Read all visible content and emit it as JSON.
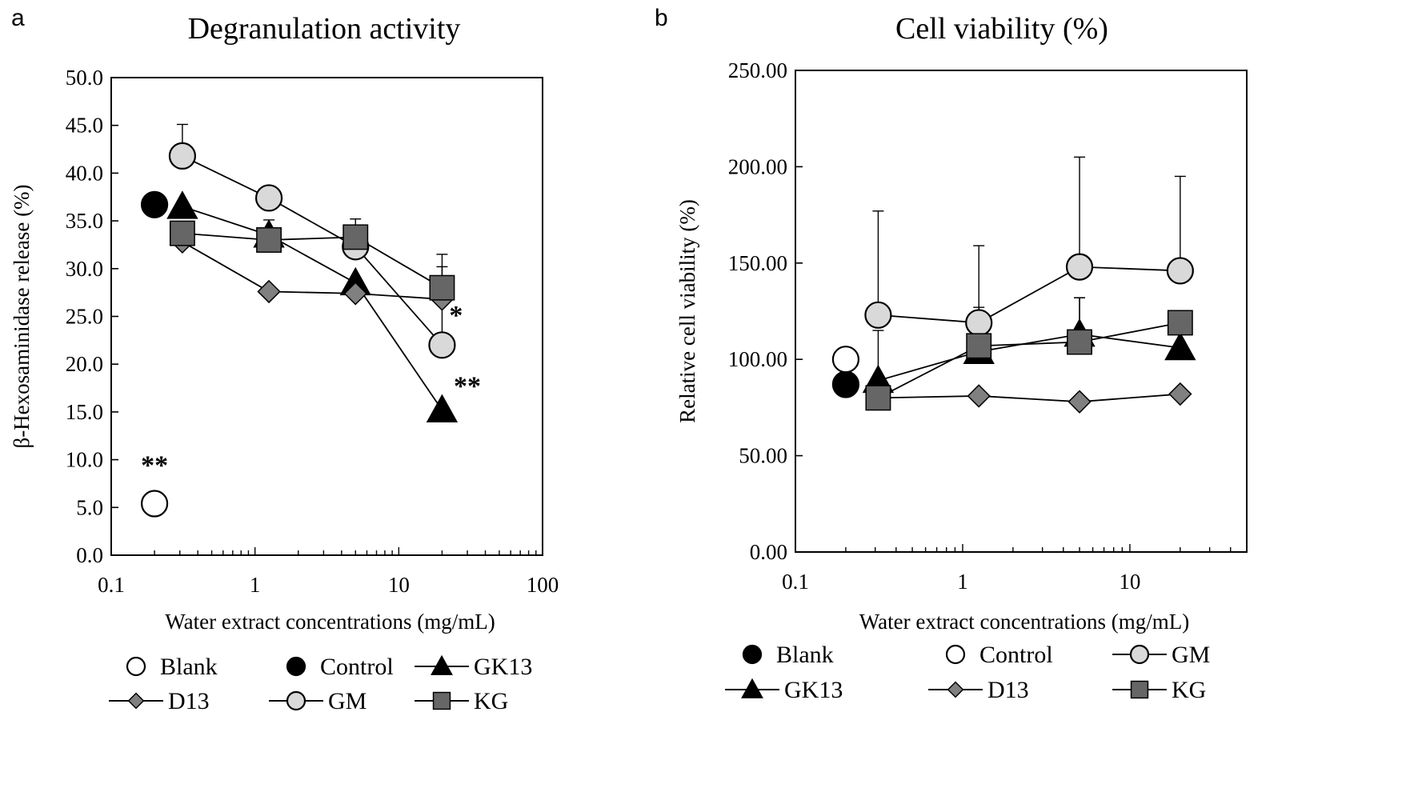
{
  "chart_data": [
    {
      "type": "scatter",
      "panel_label": "a",
      "title": "Degranulation activity",
      "xlabel": "Water extract concentrations  (mg/mL)",
      "ylabel": "β-Hexosaminidase release (%)",
      "xscale": "log",
      "xlim": [
        0.1,
        100
      ],
      "ylim": [
        0,
        50
      ],
      "xticks": [
        "0.1",
        "1",
        "10",
        "100"
      ],
      "yticks": [
        "0.0",
        "5.0",
        "10.0",
        "15.0",
        "20.0",
        "25.0",
        "30.0",
        "35.0",
        "40.0",
        "45.0",
        "50.0"
      ],
      "series": [
        {
          "name": "Blank",
          "marker": "circle-open",
          "line": false,
          "x": [
            0.2
          ],
          "y": [
            5.4
          ],
          "err": [
            0
          ]
        },
        {
          "name": "Control",
          "marker": "circle-filled",
          "line": false,
          "x": [
            0.2
          ],
          "y": [
            36.7
          ],
          "err": [
            0
          ]
        },
        {
          "name": "GK13",
          "marker": "triangle",
          "line": true,
          "x": [
            0.3125,
            1.25,
            5,
            20
          ],
          "y": [
            36.5,
            33.5,
            28.5,
            15.2
          ],
          "err": [
            0,
            0,
            0,
            0
          ]
        },
        {
          "name": "D13",
          "marker": "diamond",
          "line": true,
          "x": [
            0.3125,
            1.25,
            5,
            20
          ],
          "y": [
            32.8,
            27.6,
            27.4,
            26.8
          ],
          "err": [
            0,
            0,
            1.5,
            0
          ]
        },
        {
          "name": "GM",
          "marker": "circle-gray",
          "line": true,
          "x": [
            0.3125,
            1.25,
            5,
            20
          ],
          "y": [
            41.8,
            37.4,
            32.3,
            22.0
          ],
          "err": [
            3.3,
            0,
            0,
            9.5
          ]
        },
        {
          "name": "KG",
          "marker": "square",
          "line": true,
          "x": [
            0.3125,
            1.25,
            5,
            20
          ],
          "y": [
            33.7,
            33.0,
            33.3,
            28.0
          ],
          "err": [
            0,
            2.1,
            1.9,
            2.2
          ]
        }
      ],
      "annotations": [
        {
          "text": "**",
          "x": 0.2,
          "y": 8.5
        },
        {
          "text": "*",
          "x": 25,
          "y": 24.2
        },
        {
          "text": "**",
          "x": 30,
          "y": 16.8
        }
      ],
      "legend": {
        "placement": "bottom",
        "entries": [
          "Blank",
          "Control",
          "GK13",
          "D13",
          "GM",
          "KG"
        ]
      }
    },
    {
      "type": "scatter",
      "panel_label": "b",
      "title": "Cell viability (%)",
      "xlabel": "Water extract concentrations (mg/mL)",
      "ylabel": "Relative cell viability (%)",
      "xscale": "log",
      "xlim": [
        0.1,
        50
      ],
      "ylim": [
        0,
        250
      ],
      "xticks": [
        "0.1",
        "1",
        "10"
      ],
      "yticks": [
        "0.00",
        "50.00",
        "100.00",
        "150.00",
        "200.00",
        "250.00"
      ],
      "series": [
        {
          "name": "Blank",
          "marker": "circle-filled",
          "line": false,
          "x": [
            0.2
          ],
          "y": [
            87
          ],
          "err": [
            0
          ]
        },
        {
          "name": "Control",
          "marker": "circle-open",
          "line": false,
          "x": [
            0.2
          ],
          "y": [
            100
          ],
          "err": [
            0
          ]
        },
        {
          "name": "GM",
          "marker": "circle-gray",
          "line": true,
          "x": [
            0.3125,
            1.25,
            5,
            20
          ],
          "y": [
            123,
            119,
            148,
            146
          ],
          "err": [
            54,
            40,
            57,
            49
          ]
        },
        {
          "name": "GK13",
          "marker": "triangle",
          "line": true,
          "x": [
            0.3125,
            1.25,
            5,
            20
          ],
          "y": [
            89,
            104,
            113,
            106
          ],
          "err": [
            0,
            0,
            19,
            0
          ]
        },
        {
          "name": "D13",
          "marker": "diamond",
          "line": true,
          "x": [
            0.3125,
            1.25,
            5,
            20
          ],
          "y": [
            80,
            81,
            78,
            82
          ],
          "err": [
            0,
            0,
            0,
            0
          ]
        },
        {
          "name": "KG",
          "marker": "square",
          "line": true,
          "x": [
            0.3125,
            1.25,
            5,
            20
          ],
          "y": [
            80,
            107,
            109,
            119
          ],
          "err": [
            35,
            20,
            23,
            0
          ]
        }
      ],
      "legend": {
        "placement": "bottom",
        "entries": [
          "Blank",
          "Control",
          "GM",
          "GK13",
          "D13",
          "KG"
        ]
      }
    }
  ]
}
